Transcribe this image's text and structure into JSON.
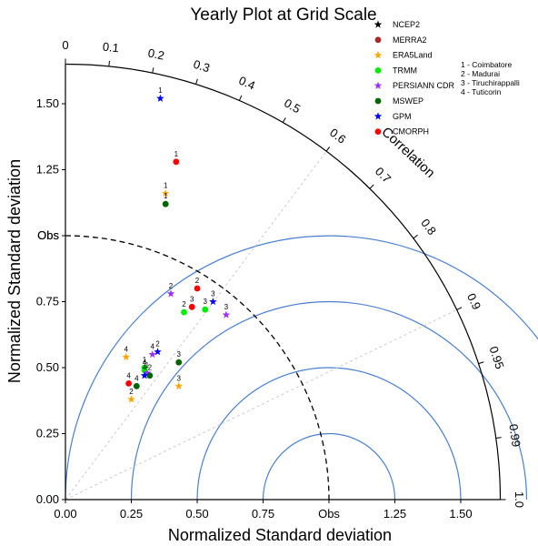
{
  "chart_data": {
    "type": "scatter",
    "title": "Yearly Plot at Grid Scale",
    "xlabel": "Normalized Standard deviation",
    "ylabel": "Normalized Standard deviation",
    "arc_label": "Correlation",
    "obs_label": "Obs",
    "xlim": [
      0,
      1.65
    ],
    "ylim": [
      0,
      1.65
    ],
    "x_ticks": [
      "0.00",
      "0.25",
      "0.50",
      "0.75",
      "Obs",
      "1.25",
      "1.50"
    ],
    "y_ticks": [
      "0.00",
      "0.25",
      "0.50",
      "0.75",
      "Obs",
      "1.25",
      "1.50"
    ],
    "correlation_ticks": [
      "0",
      "0.1",
      "0.2",
      "0.3",
      "0.4",
      "0.5",
      "0.6",
      "0.7",
      "0.8",
      "0.9",
      "0.95",
      "0.99",
      "1.0"
    ],
    "reference_lines": [
      "0.6",
      "0.9"
    ],
    "rmsd_contours": [
      0.25,
      0.5,
      0.75,
      1.0
    ],
    "series": [
      {
        "name": "NCEP2",
        "color": "#000000",
        "marker": "star",
        "points": []
      },
      {
        "name": "MERRA2",
        "color": "#a52a2a",
        "marker": "circle",
        "points": []
      },
      {
        "name": "ERA5Land",
        "color": "#ffa500",
        "marker": "star",
        "points": [
          {
            "label": "1",
            "x": 0.38,
            "y": 1.16
          },
          {
            "label": "2",
            "x": 0.25,
            "y": 0.38
          },
          {
            "label": "3",
            "x": 0.43,
            "y": 0.43
          },
          {
            "label": "4",
            "x": 0.23,
            "y": 0.54
          }
        ]
      },
      {
        "name": "TRMM",
        "color": "#00ee00",
        "marker": "circle",
        "points": [
          {
            "label": "2",
            "x": 0.45,
            "y": 0.71
          },
          {
            "label": "3",
            "x": 0.53,
            "y": 0.72
          },
          {
            "label": "1",
            "x": 0.3,
            "y": 0.5
          },
          {
            "label": "4",
            "x": 0.3,
            "y": 0.49
          }
        ]
      },
      {
        "name": "PERSIANN CDR",
        "color": "#9b30ff",
        "marker": "star",
        "points": [
          {
            "label": "2",
            "x": 0.4,
            "y": 0.78
          },
          {
            "label": "3",
            "x": 0.61,
            "y": 0.7
          },
          {
            "label": "4",
            "x": 0.33,
            "y": 0.55
          },
          {
            "label": "1",
            "x": 0.31,
            "y": 0.48
          }
        ]
      },
      {
        "name": "MSWEP",
        "color": "#006400",
        "marker": "circle",
        "points": [
          {
            "label": "1",
            "x": 0.38,
            "y": 1.12
          },
          {
            "label": "3",
            "x": 0.43,
            "y": 0.52
          },
          {
            "label": "4",
            "x": 0.27,
            "y": 0.43
          },
          {
            "label": "2",
            "x": 0.32,
            "y": 0.47
          }
        ]
      },
      {
        "name": "GPM",
        "color": "#0000ff",
        "marker": "star",
        "points": [
          {
            "label": "1",
            "x": 0.36,
            "y": 1.52
          },
          {
            "label": "3",
            "x": 0.56,
            "y": 0.75
          },
          {
            "label": "2",
            "x": 0.35,
            "y": 0.56
          },
          {
            "label": "4",
            "x": 0.3,
            "y": 0.47
          }
        ]
      },
      {
        "name": "CMORPH",
        "color": "#ff0000",
        "marker": "circle",
        "points": [
          {
            "label": "1",
            "x": 0.42,
            "y": 1.28
          },
          {
            "label": "2",
            "x": 0.5,
            "y": 0.8
          },
          {
            "label": "3",
            "x": 0.48,
            "y": 0.73
          },
          {
            "label": "4",
            "x": 0.24,
            "y": 0.44
          }
        ]
      }
    ],
    "station_key": [
      "1 - Coimbatore",
      "2 - Madurai",
      "3 - Tiruchirappalli",
      "4 - Tuticorin"
    ],
    "legend_position": "top-right"
  }
}
